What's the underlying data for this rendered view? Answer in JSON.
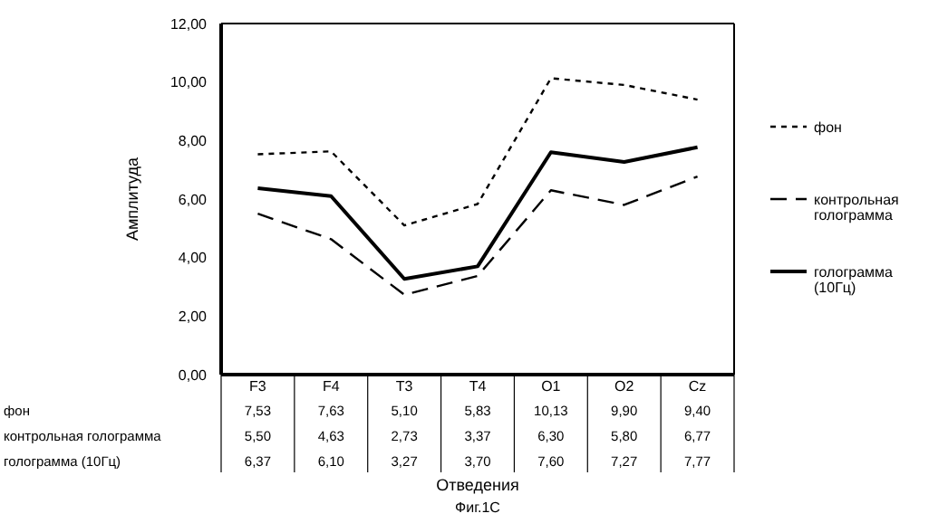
{
  "chart_data": {
    "type": "line",
    "xlabel": "Отведения",
    "ylabel": "Амплитуда",
    "annotations": [
      "Фиг.1С"
    ],
    "categories": [
      "F3",
      "F4",
      "T3",
      "T4",
      "O1",
      "O2",
      "Cz"
    ],
    "series": [
      {
        "name": "фон",
        "color": "#000000",
        "line_style": "dotted",
        "values": [
          7.53,
          7.63,
          5.1,
          5.83,
          10.13,
          9.9,
          9.4
        ],
        "value_labels": [
          "7,53",
          "7,63",
          "5,10",
          "5,83",
          "10,13",
          "9,90",
          "9,40"
        ]
      },
      {
        "name": "контрольная голограмма",
        "color": "#000000",
        "line_style": "dashed",
        "values": [
          5.5,
          4.63,
          2.73,
          3.37,
          6.3,
          5.8,
          6.77
        ],
        "value_labels": [
          "5,50",
          "4,63",
          "2,73",
          "3,37",
          "6,30",
          "5,80",
          "6,77"
        ]
      },
      {
        "name": "голограмма (10Гц)",
        "color": "#000000",
        "line_style": "solid",
        "values": [
          6.37,
          6.1,
          3.27,
          3.7,
          7.6,
          7.27,
          7.77
        ],
        "value_labels": [
          "6,37",
          "6,10",
          "3,27",
          "3,70",
          "7,60",
          "7,27",
          "7,77"
        ]
      }
    ],
    "ylim": [
      0,
      12
    ],
    "yticks": [
      {
        "value": 0,
        "label": "0,00"
      },
      {
        "value": 2,
        "label": "2,00"
      },
      {
        "value": 4,
        "label": "4,00"
      },
      {
        "value": 6,
        "label": "6,00"
      },
      {
        "value": 8,
        "label": "8,00"
      },
      {
        "value": 10,
        "label": "10,00"
      },
      {
        "value": 12,
        "label": "12,00"
      }
    ],
    "legend": "right",
    "marker": "none",
    "grid": false
  }
}
